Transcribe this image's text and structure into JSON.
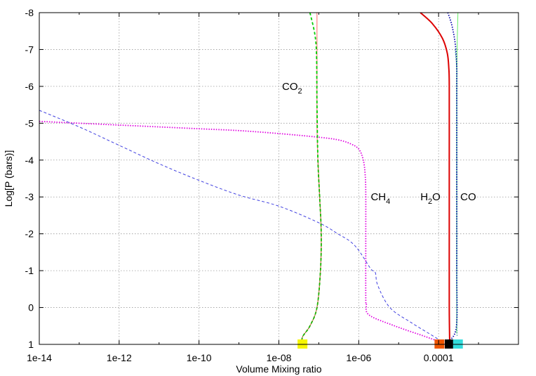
{
  "chart_data": {
    "type": "line",
    "xlabel": "Volume Mixing ratio",
    "ylabel": "Log[P (bars)]",
    "x_scale": "log",
    "xlim": [
      1e-14,
      0.01
    ],
    "ylim": [
      1,
      -8
    ],
    "x_ticks": [
      "1e-14",
      "1e-12",
      "1e-10",
      "1e-08",
      "1e-06",
      "0.0001"
    ],
    "x_tick_values": [
      1e-14,
      1e-12,
      1e-10,
      1e-08,
      1e-06,
      0.0001
    ],
    "y_ticks": [
      "-8",
      "-7",
      "-6",
      "-5",
      "-4",
      "-3",
      "-2",
      "-1",
      "0",
      "1"
    ],
    "y_tick_values": [
      -8,
      -7,
      -6,
      -5,
      -4,
      -3,
      -2,
      -1,
      0,
      1
    ],
    "grid": true,
    "annotations": [
      {
        "base": "CO",
        "sub": "2",
        "x": 1.2e-08,
        "y": -6.0
      },
      {
        "base": "CH",
        "sub": "4",
        "x": 2e-06,
        "y": -3.0
      },
      {
        "base": "H",
        "sub": "2",
        "tail": "O",
        "x": 3.5e-05,
        "y": -3.0
      },
      {
        "base": "CO",
        "sub": "",
        "x": 0.00035,
        "y": -3.0
      }
    ],
    "series": [
      {
        "color": "#e000e0",
        "style": "dotted",
        "width": 1.8,
        "x": [
          1e-14,
          1e-12,
          1e-10,
          1e-09,
          1e-08,
          1e-07,
          3e-07,
          6e-07,
          1e-06,
          1.3e-06,
          1.45e-06,
          1.5e-06,
          1.5e-06,
          1.5e-06,
          1.55e-06,
          1.8e-06,
          8e-06,
          5e-05,
          0.00014
        ],
        "y": [
          -5.05,
          -4.95,
          -4.85,
          -4.8,
          -4.72,
          -4.62,
          -4.55,
          -4.45,
          -4.3,
          -4.0,
          -3.6,
          -3.1,
          -2.0,
          -0.3,
          -0.1,
          0.2,
          0.5,
          0.8,
          0.98
        ]
      },
      {
        "color": "#4040e0",
        "style": "dashed",
        "width": 1.0,
        "x": [
          1e-14,
          1e-13,
          1e-12,
          1e-11,
          1e-10,
          1e-09,
          1e-08,
          1e-07,
          3e-07,
          6e-07,
          1e-06,
          2e-06,
          2.6e-06,
          3e-06,
          6e-06,
          2e-05,
          8e-05,
          0.00014
        ],
        "y": [
          -5.35,
          -4.9,
          -4.4,
          -3.9,
          -3.45,
          -3.05,
          -2.75,
          -2.3,
          -2.0,
          -1.8,
          -1.55,
          -1.05,
          -0.95,
          -0.6,
          0.0,
          0.4,
          0.8,
          0.98
        ]
      },
      {
        "color": "#ff8080",
        "style": "solid",
        "width": 1.2,
        "x": [
          9e-08,
          9e-08,
          9e-08,
          9.5e-08,
          1.05e-07,
          1.15e-07,
          1.1e-07,
          9e-08,
          6e-08,
          3.9e-08,
          3.9e-08
        ],
        "y": [
          -8,
          -6.5,
          -5.0,
          -4.0,
          -3.0,
          -2.0,
          -1.0,
          0.0,
          0.5,
          0.8,
          1.0
        ]
      },
      {
        "color": "#00cc00",
        "style": "dashed",
        "width": 1.8,
        "x": [
          6e-08,
          8e-08,
          8.8e-08,
          9e-08,
          9.5e-08,
          1.05e-07,
          1.15e-07,
          1.1e-07,
          9e-08,
          6e-08,
          3.9e-08,
          3.9e-08
        ],
        "y": [
          -8,
          -7.4,
          -6.8,
          -5.5,
          -4.0,
          -3.0,
          -2.0,
          -1.0,
          0.0,
          0.5,
          0.8,
          1.0
        ]
      },
      {
        "color": "#666600",
        "style": "dotted",
        "width": 1.0,
        "x": [
          9.5e-08,
          1.05e-07,
          1.15e-07,
          1.1e-07,
          9e-08,
          6e-08,
          3.9e-08,
          3.9e-08
        ],
        "y": [
          -4.0,
          -3.0,
          -2.0,
          -1.0,
          0.0,
          0.5,
          0.8,
          1.0
        ]
      },
      {
        "color": "#dd0000",
        "style": "solid",
        "width": 2.0,
        "x": [
          3.5e-05,
          7e-05,
          0.000125,
          0.000165,
          0.00018,
          0.000185,
          0.000185,
          0.000185,
          0.000185,
          0.00019
        ],
        "y": [
          -8,
          -7.7,
          -7.3,
          -6.9,
          -6.5,
          -6.0,
          -4.0,
          -2.0,
          0.0,
          1.0
        ]
      },
      {
        "color": "#66ee66",
        "style": "solid",
        "width": 1.0,
        "x": [
          0.000305,
          0.00029,
          0.000285,
          0.000285,
          0.000285,
          0.000285
        ],
        "y": [
          -8,
          -7,
          -6,
          -4,
          -2,
          0.7
        ]
      },
      {
        "color": "#0000aa",
        "style": "dotted",
        "width": 1.8,
        "x": [
          0.00017,
          0.00021,
          0.00025,
          0.000275,
          0.000285,
          0.000285,
          0.000285,
          0.000285,
          0.00028,
          0.00019
        ],
        "y": [
          -8,
          -7.7,
          -7.3,
          -6.9,
          -6.5,
          -6.0,
          -4.0,
          -1.0,
          0.5,
          0.9
        ]
      },
      {
        "color": "#008888",
        "style": "dotted",
        "width": 1.0,
        "x": [
          0.00026,
          0.000283,
          0.000285,
          0.000285,
          0.000285,
          0.00029
        ],
        "y": [
          -7.0,
          -6.5,
          -6.0,
          -3.0,
          0.0,
          0.8
        ]
      }
    ],
    "markers": [
      {
        "x": 3.9e-08,
        "y": 1,
        "color": "#f5f500"
      },
      {
        "x": 0.000105,
        "y": 1,
        "color": "#ee5500"
      },
      {
        "x": 0.00019,
        "y": 1,
        "color": "#000000"
      },
      {
        "x": 0.000305,
        "y": 1,
        "color": "#33dddd"
      }
    ]
  }
}
